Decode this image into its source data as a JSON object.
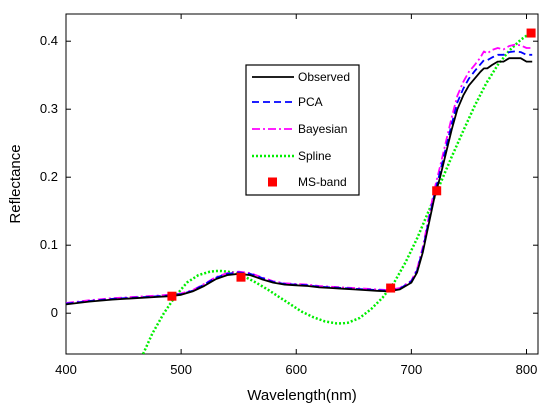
{
  "chart_data": {
    "type": "line",
    "title": "",
    "xlabel": "Wavelength(nm)",
    "ylabel": "Reflectance",
    "xlim": [
      400,
      810
    ],
    "ylim": [
      -0.06,
      0.44
    ],
    "x_ticks": [
      400,
      500,
      600,
      700,
      800
    ],
    "x_tick_labels": [
      "400",
      "500",
      "600",
      "700",
      "800"
    ],
    "y_ticks": [
      0,
      0.1,
      0.2,
      0.3,
      0.4
    ],
    "y_tick_labels": [
      "0",
      "0.1",
      "0.2",
      "0.3",
      "0.4"
    ],
    "grid": false,
    "legend_position": "top-center",
    "series": [
      {
        "name": "Observed",
        "style": "solid",
        "color": "#000000",
        "x": [
          400,
          420,
          440,
          460,
          480,
          490,
          500,
          510,
          520,
          530,
          540,
          550,
          560,
          570,
          580,
          590,
          600,
          610,
          620,
          630,
          640,
          650,
          660,
          670,
          680,
          690,
          700,
          705,
          710,
          715,
          720,
          725,
          730,
          735,
          740,
          745,
          750,
          755,
          760,
          763,
          766,
          770,
          775,
          780,
          785,
          790,
          795,
          800,
          805
        ],
        "y": [
          0.013,
          0.017,
          0.02,
          0.022,
          0.024,
          0.025,
          0.027,
          0.032,
          0.04,
          0.05,
          0.056,
          0.058,
          0.056,
          0.05,
          0.045,
          0.042,
          0.041,
          0.04,
          0.038,
          0.037,
          0.036,
          0.035,
          0.034,
          0.033,
          0.032,
          0.035,
          0.045,
          0.06,
          0.09,
          0.13,
          0.17,
          0.2,
          0.235,
          0.27,
          0.3,
          0.32,
          0.335,
          0.345,
          0.355,
          0.36,
          0.36,
          0.365,
          0.37,
          0.37,
          0.375,
          0.375,
          0.375,
          0.37,
          0.37
        ]
      },
      {
        "name": "PCA",
        "style": "dashed",
        "color": "#0000ff",
        "x": [
          400,
          420,
          440,
          460,
          480,
          490,
          500,
          510,
          520,
          530,
          540,
          550,
          560,
          570,
          580,
          590,
          600,
          610,
          620,
          630,
          640,
          650,
          660,
          670,
          680,
          690,
          700,
          705,
          710,
          715,
          720,
          725,
          730,
          735,
          740,
          745,
          750,
          755,
          760,
          763,
          766,
          770,
          775,
          780,
          785,
          790,
          795,
          800,
          805
        ],
        "y": [
          0.014,
          0.018,
          0.021,
          0.023,
          0.025,
          0.026,
          0.028,
          0.033,
          0.042,
          0.052,
          0.058,
          0.06,
          0.058,
          0.052,
          0.046,
          0.043,
          0.042,
          0.041,
          0.039,
          0.038,
          0.037,
          0.036,
          0.035,
          0.034,
          0.033,
          0.036,
          0.047,
          0.063,
          0.094,
          0.135,
          0.175,
          0.208,
          0.243,
          0.278,
          0.31,
          0.33,
          0.345,
          0.356,
          0.366,
          0.372,
          0.372,
          0.376,
          0.38,
          0.38,
          0.384,
          0.385,
          0.384,
          0.38,
          0.38
        ]
      },
      {
        "name": "Bayesian",
        "style": "dash-dot",
        "color": "#ff00ff",
        "x": [
          400,
          420,
          440,
          460,
          480,
          490,
          500,
          510,
          520,
          530,
          540,
          550,
          560,
          570,
          580,
          590,
          600,
          610,
          620,
          630,
          640,
          650,
          660,
          670,
          680,
          690,
          700,
          705,
          710,
          715,
          720,
          725,
          730,
          735,
          740,
          745,
          750,
          755,
          760,
          763,
          766,
          770,
          775,
          780,
          785,
          790,
          795,
          800,
          805
        ],
        "y": [
          0.015,
          0.019,
          0.022,
          0.024,
          0.026,
          0.027,
          0.029,
          0.034,
          0.043,
          0.053,
          0.059,
          0.061,
          0.059,
          0.053,
          0.047,
          0.044,
          0.043,
          0.042,
          0.04,
          0.039,
          0.038,
          0.037,
          0.036,
          0.035,
          0.034,
          0.037,
          0.048,
          0.065,
          0.098,
          0.14,
          0.182,
          0.216,
          0.252,
          0.288,
          0.32,
          0.34,
          0.355,
          0.365,
          0.376,
          0.385,
          0.382,
          0.387,
          0.39,
          0.388,
          0.393,
          0.395,
          0.394,
          0.39,
          0.39
        ]
      },
      {
        "name": "Spline",
        "style": "dotted",
        "color": "#00ee00",
        "x": [
          467,
          475,
          485,
          495,
          505,
          515,
          525,
          530,
          535,
          545,
          555,
          565,
          575,
          585,
          595,
          605,
          615,
          625,
          635,
          640,
          645,
          655,
          665,
          675,
          685,
          695,
          705,
          715,
          725,
          735,
          745,
          755,
          765,
          775,
          785,
          795,
          800,
          805
        ],
        "y": [
          -0.06,
          -0.03,
          0.0,
          0.025,
          0.045,
          0.056,
          0.061,
          0.062,
          0.062,
          0.06,
          0.054,
          0.045,
          0.035,
          0.024,
          0.013,
          0.002,
          -0.006,
          -0.012,
          -0.015,
          -0.015,
          -0.014,
          -0.007,
          0.006,
          0.023,
          0.045,
          0.075,
          0.11,
          0.15,
          0.19,
          0.23,
          0.268,
          0.305,
          0.338,
          0.365,
          0.386,
          0.402,
          0.408,
          0.412
        ]
      },
      {
        "name": "MS-band",
        "style": "marker",
        "color": "#ff0000",
        "x": [
          492,
          552,
          682,
          722,
          804
        ],
        "y": [
          0.025,
          0.053,
          0.037,
          0.18,
          0.412
        ]
      }
    ]
  }
}
